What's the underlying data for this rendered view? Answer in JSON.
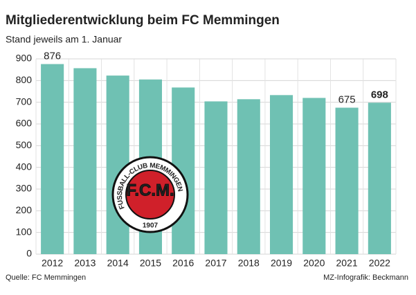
{
  "chart_data": {
    "type": "bar",
    "title": "Mitgliederentwicklung beim FC Memmingen",
    "subtitle": "Stand jeweils am 1. Januar",
    "categories": [
      "2012",
      "2013",
      "2014",
      "2015",
      "2016",
      "2017",
      "2018",
      "2019",
      "2020",
      "2021",
      "2022"
    ],
    "values": [
      876,
      857,
      823,
      805,
      768,
      704,
      714,
      733,
      720,
      675,
      698
    ],
    "color": "#6fc1b3",
    "ylim": [
      0,
      900
    ],
    "yticks": [
      0,
      100,
      200,
      300,
      400,
      500,
      600,
      700,
      800,
      900
    ],
    "grid": true,
    "labeled": [
      0,
      9,
      10
    ],
    "bold_labels": [
      10
    ],
    "source": "Quelle: FC Memmingen",
    "credit": "MZ-Infografik: Beckmann",
    "logo": {
      "ring_text": "FUSSBALL-CLUB MEMMINGEN",
      "initials": "F.C.M.",
      "year": "1907"
    }
  }
}
